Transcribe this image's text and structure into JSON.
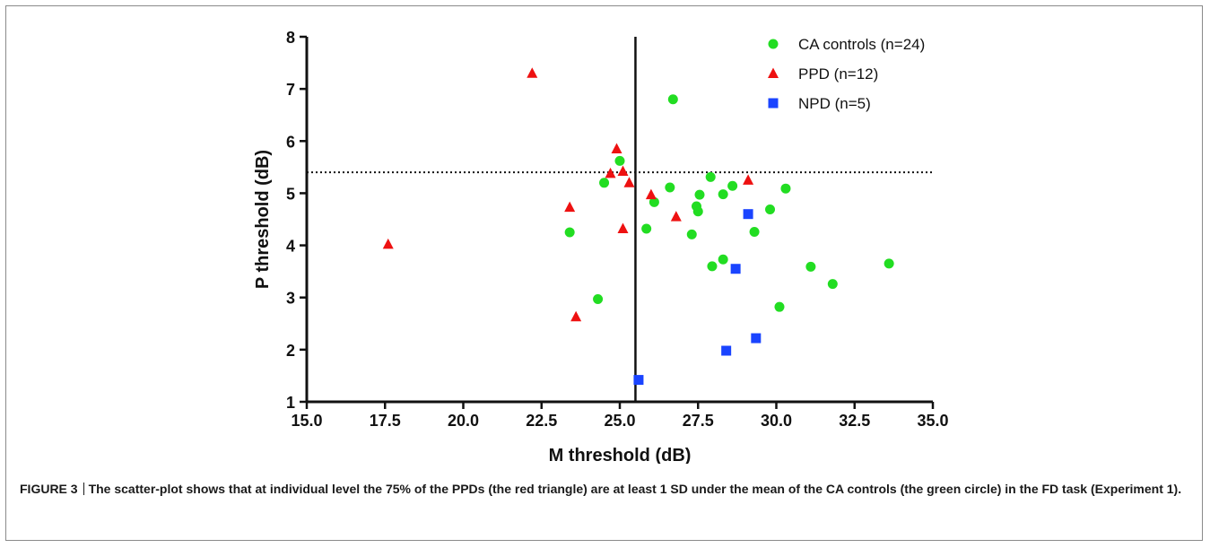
{
  "caption": {
    "figure_label": "FIGURE 3",
    "text": "The scatter-plot shows that at individual level the 75% of the PPDs (the red triangle) are at least 1 SD under the mean of the CA controls (the green circle) in the FD task (Experiment 1)."
  },
  "chart_data": {
    "type": "scatter",
    "xlabel": "M threshold (dB)",
    "ylabel": "P threshold (dB)",
    "xlim": [
      15,
      35
    ],
    "ylim": [
      1,
      8
    ],
    "x_ticks": [
      "15.0",
      "17.5",
      "20.0",
      "22.5",
      "25.0",
      "27.5",
      "30.0",
      "32.5",
      "35.0"
    ],
    "y_ticks": [
      "1",
      "2",
      "3",
      "4",
      "5",
      "6",
      "7",
      "8"
    ],
    "grid": false,
    "legend_position": "top-right",
    "reference_lines": {
      "vertical_x": 25.5,
      "horizontal_y": 5.4
    },
    "series": [
      {
        "name": "CA controls (n=24)",
        "marker": "circle",
        "color": "#22dd22",
        "points": [
          [
            26.7,
            6.8
          ],
          [
            25.0,
            5.62
          ],
          [
            24.5,
            5.2
          ],
          [
            23.4,
            4.25
          ],
          [
            24.3,
            2.97
          ],
          [
            25.85,
            4.32
          ],
          [
            26.1,
            4.83
          ],
          [
            26.6,
            5.11
          ],
          [
            27.3,
            4.21
          ],
          [
            27.45,
            4.75
          ],
          [
            27.5,
            4.65
          ],
          [
            27.55,
            4.97
          ],
          [
            27.9,
            5.31
          ],
          [
            27.95,
            3.6
          ],
          [
            28.3,
            3.73
          ],
          [
            28.3,
            4.98
          ],
          [
            28.6,
            5.14
          ],
          [
            29.3,
            4.26
          ],
          [
            29.8,
            4.69
          ],
          [
            30.1,
            2.82
          ],
          [
            30.3,
            5.09
          ],
          [
            31.1,
            3.59
          ],
          [
            31.8,
            3.26
          ],
          [
            33.6,
            3.65
          ]
        ]
      },
      {
        "name": "PPD (n=12)",
        "marker": "triangle",
        "color": "#ee1111",
        "points": [
          [
            22.2,
            7.3
          ],
          [
            17.6,
            4.02
          ],
          [
            23.4,
            4.73
          ],
          [
            23.6,
            2.63
          ],
          [
            24.7,
            5.38
          ],
          [
            24.9,
            5.85
          ],
          [
            25.1,
            5.42
          ],
          [
            25.3,
            5.2
          ],
          [
            25.1,
            4.32
          ],
          [
            26.0,
            4.97
          ],
          [
            26.8,
            4.55
          ],
          [
            29.1,
            5.25
          ]
        ]
      },
      {
        "name": "NPD (n=5)",
        "marker": "square",
        "color": "#1a44ff",
        "points": [
          [
            29.1,
            4.6
          ],
          [
            28.7,
            3.55
          ],
          [
            28.4,
            1.98
          ],
          [
            29.35,
            2.22
          ],
          [
            25.6,
            1.42
          ]
        ]
      }
    ]
  }
}
